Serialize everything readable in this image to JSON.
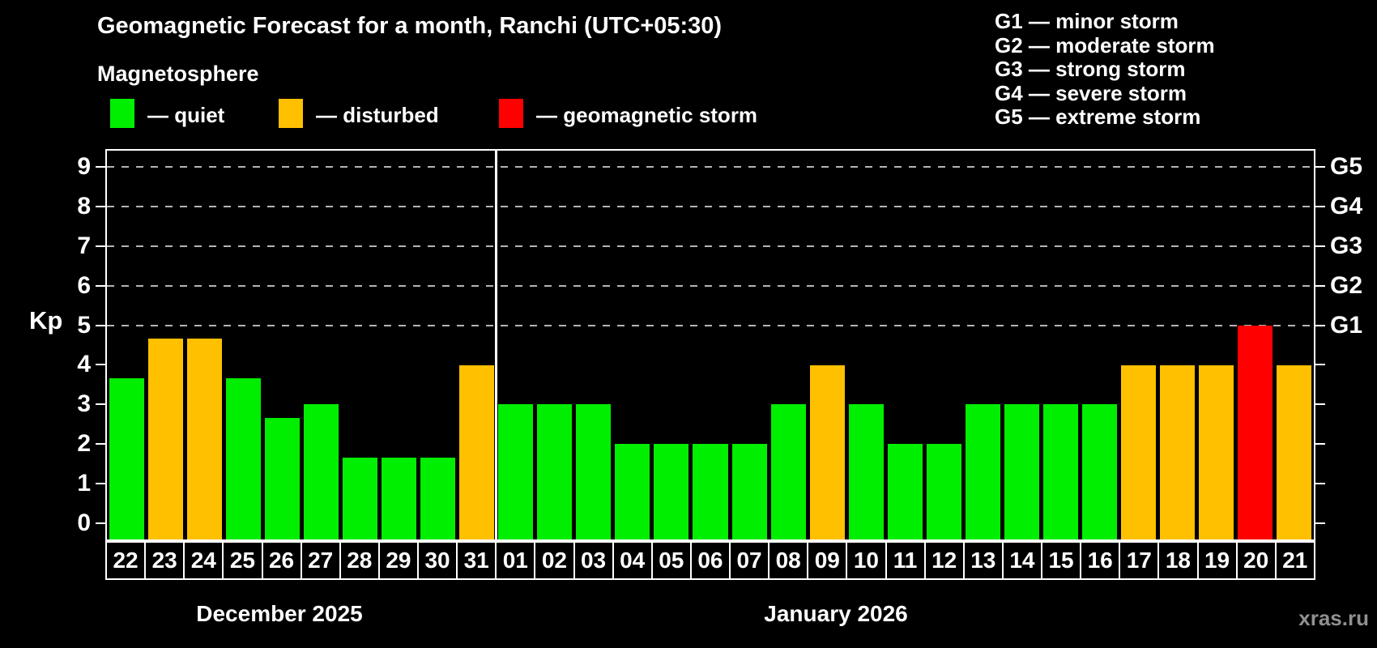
{
  "header": {
    "title": "Geomagnetic Forecast for a month, Ranchi (UTC+05:30)",
    "subtitle": "Magnetosphere"
  },
  "condition_legend": {
    "items": [
      {
        "key": "quiet",
        "label": "— quiet",
        "color": "#00ee00"
      },
      {
        "key": "disturbed",
        "label": "— disturbed",
        "color": "#ffc000"
      },
      {
        "key": "storm",
        "label": "— geomagnetic storm",
        "color": "#ff0000"
      }
    ]
  },
  "storm_scale_legend": {
    "items": [
      {
        "label": "G1 — minor storm"
      },
      {
        "label": "G2 — moderate storm"
      },
      {
        "label": "G3 — strong storm"
      },
      {
        "label": "G4 — severe storm"
      },
      {
        "label": "G5 — extreme storm"
      }
    ]
  },
  "watermark": "xras.ru",
  "chart_data": {
    "type": "bar",
    "ylabel": "Kp",
    "ylim": [
      -0.4,
      9.4
    ],
    "y_ticks": [
      0,
      1,
      2,
      3,
      4,
      5,
      6,
      7,
      8,
      9
    ],
    "gridlines_at": [
      5,
      6,
      7,
      8,
      9
    ],
    "grid": "dashed horizontal at G-levels only",
    "legend_position": "top",
    "colors": {
      "quiet": "#00ee00",
      "disturbed": "#ffc000",
      "storm": "#ff0000"
    },
    "right_axis": {
      "labels": [
        {
          "text": "G1",
          "value": 5
        },
        {
          "text": "G2",
          "value": 6
        },
        {
          "text": "G3",
          "value": 7
        },
        {
          "text": "G4",
          "value": 8
        },
        {
          "text": "G5",
          "value": 9
        }
      ]
    },
    "months": [
      {
        "label": "December 2025",
        "bars": [
          {
            "day": "22",
            "kp": 3.67,
            "status": "quiet"
          },
          {
            "day": "23",
            "kp": 4.67,
            "status": "disturbed"
          },
          {
            "day": "24",
            "kp": 4.67,
            "status": "disturbed"
          },
          {
            "day": "25",
            "kp": 3.67,
            "status": "quiet"
          },
          {
            "day": "26",
            "kp": 2.67,
            "status": "quiet"
          },
          {
            "day": "27",
            "kp": 3,
            "status": "quiet"
          },
          {
            "day": "28",
            "kp": 1.67,
            "status": "quiet"
          },
          {
            "day": "29",
            "kp": 1.67,
            "status": "quiet"
          },
          {
            "day": "30",
            "kp": 1.67,
            "status": "quiet"
          },
          {
            "day": "31",
            "kp": 4,
            "status": "disturbed"
          }
        ]
      },
      {
        "label": "January 2026",
        "bars": [
          {
            "day": "01",
            "kp": 3,
            "status": "quiet"
          },
          {
            "day": "02",
            "kp": 3,
            "status": "quiet"
          },
          {
            "day": "03",
            "kp": 3,
            "status": "quiet"
          },
          {
            "day": "04",
            "kp": 2,
            "status": "quiet"
          },
          {
            "day": "05",
            "kp": 2,
            "status": "quiet"
          },
          {
            "day": "06",
            "kp": 2,
            "status": "quiet"
          },
          {
            "day": "07",
            "kp": 2,
            "status": "quiet"
          },
          {
            "day": "08",
            "kp": 3,
            "status": "quiet"
          },
          {
            "day": "09",
            "kp": 4,
            "status": "disturbed"
          },
          {
            "day": "10",
            "kp": 3,
            "status": "quiet"
          },
          {
            "day": "11",
            "kp": 2,
            "status": "quiet"
          },
          {
            "day": "12",
            "kp": 2,
            "status": "quiet"
          },
          {
            "day": "13",
            "kp": 3,
            "status": "quiet"
          },
          {
            "day": "14",
            "kp": 3,
            "status": "quiet"
          },
          {
            "day": "15",
            "kp": 3,
            "status": "quiet"
          },
          {
            "day": "16",
            "kp": 3,
            "status": "quiet"
          },
          {
            "day": "17",
            "kp": 4,
            "status": "disturbed"
          },
          {
            "day": "18",
            "kp": 4,
            "status": "disturbed"
          },
          {
            "day": "19",
            "kp": 4,
            "status": "disturbed"
          },
          {
            "day": "20",
            "kp": 5,
            "status": "storm"
          },
          {
            "day": "21",
            "kp": 4,
            "status": "disturbed"
          }
        ]
      }
    ]
  }
}
